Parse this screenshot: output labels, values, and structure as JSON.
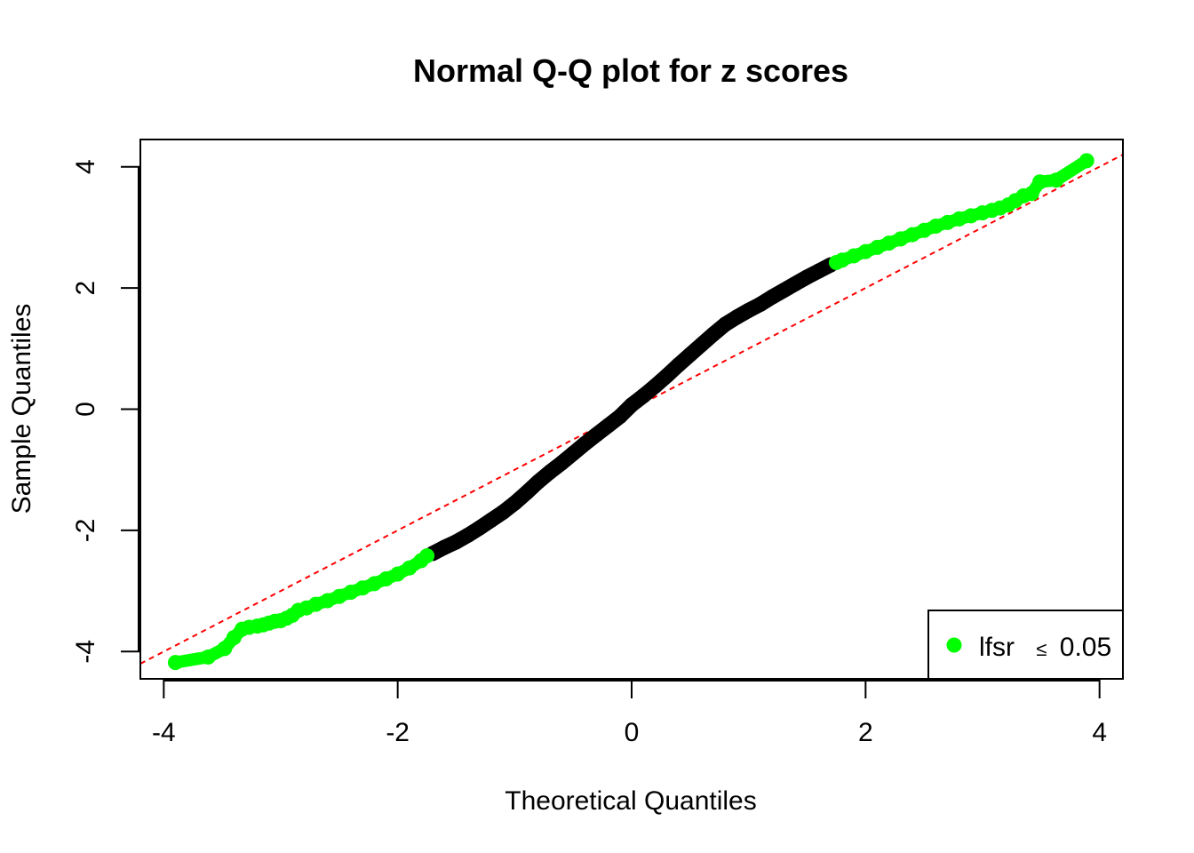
{
  "chart_data": {
    "type": "scatter",
    "title": "Normal Q-Q plot for z scores",
    "xlabel": "Theoretical Quantiles",
    "ylabel": "Sample Quantiles",
    "xlim": [
      -4.2,
      4.2
    ],
    "ylim": [
      -4.45,
      4.45
    ],
    "x_ticks": [
      -4,
      -2,
      0,
      2,
      4
    ],
    "x_tick_labels": [
      "-4",
      "-2",
      "0",
      "2",
      "4"
    ],
    "y_ticks": [
      -4,
      -2,
      0,
      2,
      4
    ],
    "y_tick_labels": [
      "-4",
      "-2",
      "0",
      "2",
      "4"
    ],
    "grid": false,
    "legend_position": "bottom-right",
    "reference_line": {
      "style": "dashed",
      "color": "#ff0000",
      "intercept": 0.0,
      "slope": 1.0
    },
    "series": [
      {
        "name": "lfsr ≤ 0.05",
        "color": "#00ff00",
        "label_parts": {
          "prefix": "lfsr",
          "symbol": "≤",
          "value": "0.05"
        },
        "points": [
          [
            -3.9,
            -4.18
          ],
          [
            -3.62,
            -4.09
          ],
          [
            -3.48,
            -3.95
          ],
          [
            -3.4,
            -3.77
          ],
          [
            -3.33,
            -3.63
          ],
          [
            -3.27,
            -3.6
          ],
          [
            -3.2,
            -3.58
          ],
          [
            -3.15,
            -3.56
          ],
          [
            -3.1,
            -3.53
          ],
          [
            -3.05,
            -3.5
          ],
          [
            -3.0,
            -3.49
          ],
          [
            -2.95,
            -3.45
          ],
          [
            -2.9,
            -3.4
          ],
          [
            -2.85,
            -3.32
          ],
          [
            -2.78,
            -3.28
          ],
          [
            -2.7,
            -3.22
          ],
          [
            -2.6,
            -3.16
          ],
          [
            -2.5,
            -3.09
          ],
          [
            -2.4,
            -3.02
          ],
          [
            -2.3,
            -2.95
          ],
          [
            -2.2,
            -2.88
          ],
          [
            -2.1,
            -2.8
          ],
          [
            -2.0,
            -2.72
          ],
          [
            -1.9,
            -2.62
          ],
          [
            -1.8,
            -2.5
          ],
          [
            -1.75,
            -2.42
          ],
          [
            1.75,
            2.42
          ],
          [
            1.8,
            2.46
          ],
          [
            1.9,
            2.53
          ],
          [
            2.0,
            2.6
          ],
          [
            2.1,
            2.67
          ],
          [
            2.2,
            2.74
          ],
          [
            2.3,
            2.81
          ],
          [
            2.4,
            2.88
          ],
          [
            2.5,
            2.95
          ],
          [
            2.6,
            3.02
          ],
          [
            2.7,
            3.08
          ],
          [
            2.8,
            3.14
          ],
          [
            2.9,
            3.19
          ],
          [
            3.0,
            3.24
          ],
          [
            3.08,
            3.28
          ],
          [
            3.15,
            3.32
          ],
          [
            3.22,
            3.37
          ],
          [
            3.28,
            3.44
          ],
          [
            3.35,
            3.52
          ],
          [
            3.42,
            3.56
          ],
          [
            3.49,
            3.75
          ],
          [
            3.63,
            3.78
          ],
          [
            3.89,
            4.1
          ]
        ]
      },
      {
        "name": "",
        "color": "#000000",
        "points": [
          [
            -1.7,
            -2.38
          ],
          [
            -1.6,
            -2.28
          ],
          [
            -1.5,
            -2.19
          ],
          [
            -1.4,
            -2.08
          ],
          [
            -1.3,
            -1.96
          ],
          [
            -1.2,
            -1.83
          ],
          [
            -1.1,
            -1.7
          ],
          [
            -1.0,
            -1.55
          ],
          [
            -0.9,
            -1.38
          ],
          [
            -0.8,
            -1.2
          ],
          [
            -0.7,
            -1.04
          ],
          [
            -0.6,
            -0.89
          ],
          [
            -0.5,
            -0.73
          ],
          [
            -0.4,
            -0.57
          ],
          [
            -0.3,
            -0.42
          ],
          [
            -0.2,
            -0.27
          ],
          [
            -0.1,
            -0.12
          ],
          [
            0.0,
            0.07
          ],
          [
            0.1,
            0.22
          ],
          [
            0.2,
            0.38
          ],
          [
            0.3,
            0.55
          ],
          [
            0.4,
            0.73
          ],
          [
            0.5,
            0.9
          ],
          [
            0.6,
            1.07
          ],
          [
            0.7,
            1.24
          ],
          [
            0.8,
            1.4
          ],
          [
            0.9,
            1.52
          ],
          [
            1.0,
            1.63
          ],
          [
            1.1,
            1.73
          ],
          [
            1.2,
            1.85
          ],
          [
            1.3,
            1.96
          ],
          [
            1.4,
            2.07
          ],
          [
            1.5,
            2.18
          ],
          [
            1.6,
            2.28
          ],
          [
            1.7,
            2.38
          ]
        ]
      }
    ]
  }
}
